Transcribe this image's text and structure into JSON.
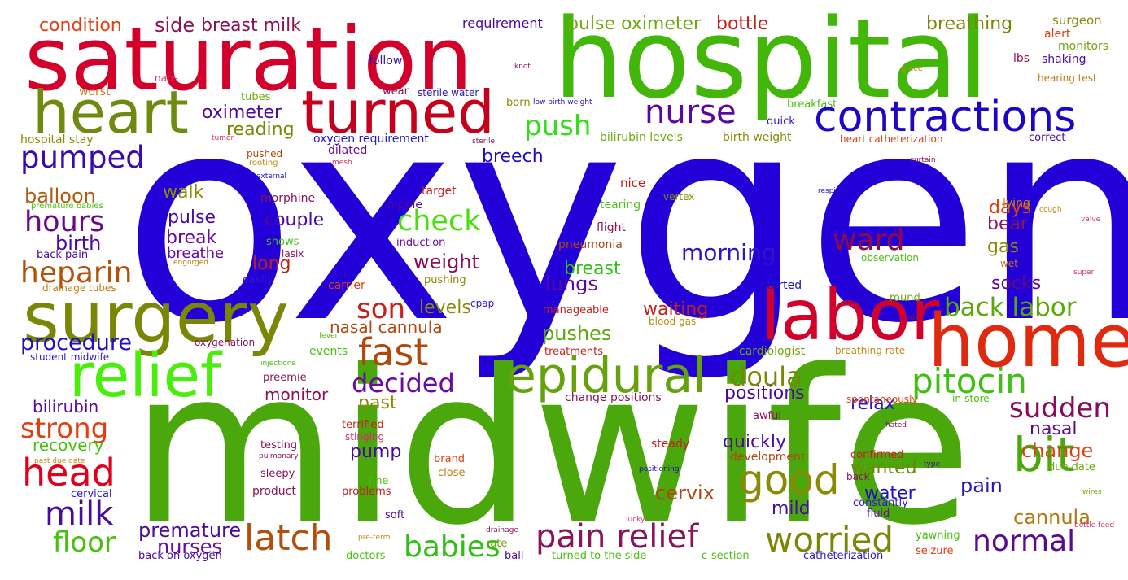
{
  "words": [
    {
      "t": "oxygen",
      "c": "#2300d8"
    },
    {
      "t": "midwife",
      "c": "#4aa80c"
    },
    {
      "t": "hospital",
      "c": "#42b70a"
    },
    {
      "t": "saturation",
      "c": "#d3002b"
    },
    {
      "t": "surgery",
      "c": "#7a8706"
    },
    {
      "t": "labor",
      "c": "#d3002b"
    },
    {
      "t": "home",
      "c": "#e02a10"
    },
    {
      "t": "heart",
      "c": "#6e8a10"
    },
    {
      "t": "turned",
      "c": "#c5001c"
    },
    {
      "t": "relief",
      "c": "#48ef0a"
    },
    {
      "t": "contractions",
      "c": "#1e06c8"
    },
    {
      "t": "epidural",
      "c": "#66a10e"
    },
    {
      "t": "head",
      "c": "#e0001e"
    },
    {
      "t": "bit",
      "c": "#4aa80c"
    },
    {
      "t": "good",
      "c": "#8a8a06"
    },
    {
      "t": "latch",
      "c": "#b34f0c"
    },
    {
      "t": "pain relief",
      "c": "#8a1458"
    },
    {
      "t": "worried",
      "c": "#7a8706"
    },
    {
      "t": "pitocin",
      "c": "#3dc010"
    },
    {
      "t": "fast",
      "c": "#b0480e"
    },
    {
      "t": "nurse",
      "c": "#5a08a0"
    },
    {
      "t": "push",
      "c": "#30e014"
    },
    {
      "t": "milk",
      "c": "#4a0a9a"
    },
    {
      "t": "pumped",
      "c": "#3a0ab0"
    },
    {
      "t": "hours",
      "c": "#6a0a8a"
    },
    {
      "t": "heparin",
      "c": "#b3500a"
    },
    {
      "t": "strong",
      "c": "#e04010"
    },
    {
      "t": "floor",
      "c": "#48c010"
    },
    {
      "t": "normal",
      "c": "#5a0a8a"
    },
    {
      "t": "babies",
      "c": "#30c014"
    },
    {
      "t": "back labor",
      "c": "#5aa80a"
    },
    {
      "t": "sudden",
      "c": "#8a0a5a"
    },
    {
      "t": "check",
      "c": "#48e00c"
    },
    {
      "t": "decided",
      "c": "#6a0aa0"
    },
    {
      "t": "son",
      "c": "#c5201c"
    },
    {
      "t": "ward",
      "c": "#900a48"
    },
    {
      "t": "doula",
      "c": "#7a8706"
    },
    {
      "t": "balloon",
      "c": "#b05c10"
    },
    {
      "t": "condition",
      "c": "#e04010"
    },
    {
      "t": "side",
      "c": "#8a1458"
    },
    {
      "t": "breast milk",
      "c": "#8a1458"
    },
    {
      "t": "pulse oximeter",
      "c": "#6ea80a"
    },
    {
      "t": "bottle",
      "c": "#c0201c"
    },
    {
      "t": "breathing",
      "c": "#7a8706"
    },
    {
      "t": "change",
      "c": "#e04010"
    },
    {
      "t": "morning",
      "c": "#2a18c8"
    },
    {
      "t": "procedure",
      "c": "#2010c0"
    },
    {
      "t": "premature",
      "c": "#4a0a9a"
    },
    {
      "t": "nurses",
      "c": "#6a0aa0"
    },
    {
      "t": "lungs",
      "c": "#5a0aa0"
    },
    {
      "t": "weight",
      "c": "#8a0a5a"
    },
    {
      "t": "pushes",
      "c": "#5aa80a"
    },
    {
      "t": "positions",
      "c": "#4a0aa0"
    },
    {
      "t": "cervix",
      "c": "#b0480e"
    },
    {
      "t": "wanted",
      "c": "#6a8a0a"
    },
    {
      "t": "water",
      "c": "#2010c0"
    },
    {
      "t": "pain",
      "c": "#2a18b0"
    },
    {
      "t": "cannula",
      "c": "#b07a10"
    },
    {
      "t": "birth",
      "c": "#4a0aa0"
    },
    {
      "t": "breast",
      "c": "#30c014"
    },
    {
      "t": "levels",
      "c": "#8a8a06"
    },
    {
      "t": "waiting",
      "c": "#c5201c"
    },
    {
      "t": "oximeter",
      "c": "#4a0aa0"
    },
    {
      "t": "reading",
      "c": "#7a8706"
    },
    {
      "t": "walk",
      "c": "#8a8a06"
    },
    {
      "t": "pulse",
      "c": "#4a0aa0"
    },
    {
      "t": "break",
      "c": "#6a0aa0"
    },
    {
      "t": "couple",
      "c": "#4a0aa0"
    },
    {
      "t": "long",
      "c": "#c0201c"
    },
    {
      "t": "breech",
      "c": "#2010c0"
    },
    {
      "t": "quickly",
      "c": "#4a0aa0"
    },
    {
      "t": "mild",
      "c": "#4a0aa0"
    },
    {
      "t": "relax",
      "c": "#2a18c8"
    },
    {
      "t": "socks",
      "c": "#5a0a8a"
    },
    {
      "t": "bear",
      "c": "#8a1458"
    },
    {
      "t": "days",
      "c": "#e04010"
    },
    {
      "t": "gas",
      "c": "#8a8a06"
    },
    {
      "t": "nasal",
      "c": "#5a0a8a"
    },
    {
      "t": "monitor",
      "c": "#8a1458"
    },
    {
      "t": "past",
      "c": "#8a8a06"
    },
    {
      "t": "recovery",
      "c": "#48c010"
    },
    {
      "t": "bilirubin",
      "c": "#5a0aa0"
    },
    {
      "t": "nasal cannula",
      "c": "#b0480e"
    },
    {
      "t": "pump",
      "c": "#4a0a9a"
    },
    {
      "t": "breathe",
      "c": "#6a0aa0"
    },
    {
      "t": "requirement",
      "c": "#4a0a9a"
    },
    {
      "t": "surgeon",
      "c": "#8a8a06"
    },
    {
      "t": "alert",
      "c": "#e04010"
    },
    {
      "t": "monitors",
      "c": "#6ea80a"
    },
    {
      "t": "shaking",
      "c": "#4a0aa0"
    },
    {
      "t": "lbs",
      "c": "#8a1458"
    },
    {
      "t": "hearing test",
      "c": "#c07a10"
    },
    {
      "t": "place",
      "c": "#c08a10"
    },
    {
      "t": "naps",
      "c": "#d3306a"
    },
    {
      "t": "follow",
      "c": "#2a18b0"
    },
    {
      "t": "knot",
      "c": "#8a1458"
    },
    {
      "t": "worst",
      "c": "#c07a10"
    },
    {
      "t": "wear",
      "c": "#8a1458"
    },
    {
      "t": "sterile water",
      "c": "#2a18b0"
    },
    {
      "t": "born",
      "c": "#8a8a06"
    },
    {
      "t": "low birth weight",
      "c": "#2010c0"
    },
    {
      "t": "tubes",
      "c": "#6ea80a"
    },
    {
      "t": "breakfast",
      "c": "#48c010"
    },
    {
      "t": "quick",
      "c": "#2a18c8"
    },
    {
      "t": "hospital stay",
      "c": "#8a8a06"
    },
    {
      "t": "tumor",
      "c": "#d3306a"
    },
    {
      "t": "pushed",
      "c": "#b0480e"
    },
    {
      "t": "rooting",
      "c": "#c08a10"
    },
    {
      "t": "oxygen requirement",
      "c": "#2a18c8"
    },
    {
      "t": "sterile",
      "c": "#8a1458"
    },
    {
      "t": "bilirubin levels",
      "c": "#6ea80a"
    },
    {
      "t": "birth weight",
      "c": "#8a8a06"
    },
    {
      "t": "heart catheterization",
      "c": "#e04010"
    },
    {
      "t": "correct",
      "c": "#4a0aa0"
    },
    {
      "t": "dilated",
      "c": "#6a0aa0"
    },
    {
      "t": "mesh",
      "c": "#d3306a"
    },
    {
      "t": "external",
      "c": "#2010c0"
    },
    {
      "t": "curtain",
      "c": "#8a1458"
    },
    {
      "t": "target",
      "c": "#c5201c"
    },
    {
      "t": "nice",
      "c": "#c0201c"
    },
    {
      "t": "respiratory",
      "c": "#2010c0"
    },
    {
      "t": "morphine",
      "c": "#8a1458"
    },
    {
      "t": "nipple",
      "c": "#4a0aa0"
    },
    {
      "t": "tearing",
      "c": "#48c010"
    },
    {
      "t": "vertex",
      "c": "#8a8a06"
    },
    {
      "t": "lying",
      "c": "#c08a10"
    },
    {
      "t": "premature babies",
      "c": "#48c010"
    },
    {
      "t": "cough",
      "c": "#c08a10"
    },
    {
      "t": "flight",
      "c": "#8a1458"
    },
    {
      "t": "valve",
      "c": "#d3306a"
    },
    {
      "t": "shows",
      "c": "#48c010"
    },
    {
      "t": "induction",
      "c": "#6a0aa0"
    },
    {
      "t": "back pain",
      "c": "#4a0a9a"
    },
    {
      "t": "lasix",
      "c": "#8a1458"
    },
    {
      "t": "pneumonia",
      "c": "#b0480e"
    },
    {
      "t": "engorged",
      "c": "#c07a10"
    },
    {
      "t": "observation",
      "c": "#48c010"
    },
    {
      "t": "wet",
      "c": "#c07a10"
    },
    {
      "t": "easily",
      "c": "#2a18c8"
    },
    {
      "t": "carrier",
      "c": "#e04010"
    },
    {
      "t": "pushing",
      "c": "#8a8a06"
    },
    {
      "t": "drainage tubes",
      "c": "#c07a10"
    },
    {
      "t": "started",
      "c": "#2010c0"
    },
    {
      "t": "super",
      "c": "#d3306a"
    },
    {
      "t": "cpap",
      "c": "#2a18c8"
    },
    {
      "t": "manageable",
      "c": "#c5201c"
    },
    {
      "t": "round",
      "c": "#6ea80a"
    },
    {
      "t": "pounds",
      "c": "#2010c0"
    },
    {
      "t": "blood gas",
      "c": "#c08a10"
    },
    {
      "t": "ended",
      "c": "#8a1458"
    },
    {
      "t": "fever",
      "c": "#48c010"
    },
    {
      "t": "oxygenation",
      "c": "#8a1458"
    },
    {
      "t": "events",
      "c": "#48c010"
    },
    {
      "t": "treatments",
      "c": "#c5201c"
    },
    {
      "t": "cardiologist",
      "c": "#6ea80a"
    },
    {
      "t": "breathing rate",
      "c": "#c08a10"
    },
    {
      "t": "student midwife",
      "c": "#2a18c8"
    },
    {
      "t": "injections",
      "c": "#48c010"
    },
    {
      "t": "preemie",
      "c": "#8a1458"
    },
    {
      "t": "change positions",
      "c": "#8a1458"
    },
    {
      "t": "spontaneously",
      "c": "#e04010"
    },
    {
      "t": "in-store",
      "c": "#48c010"
    },
    {
      "t": "terrified",
      "c": "#c5201c"
    },
    {
      "t": "awful",
      "c": "#8a1458"
    },
    {
      "t": "stinging",
      "c": "#d3306a"
    },
    {
      "t": "hated",
      "c": "#8a1458"
    },
    {
      "t": "testing",
      "c": "#8a1458"
    },
    {
      "t": "brand",
      "c": "#e04010"
    },
    {
      "t": "steady",
      "c": "#c5201c"
    },
    {
      "t": "confirmed",
      "c": "#c5201c"
    },
    {
      "t": "type",
      "c": "#4a0aa0"
    },
    {
      "t": "past due date",
      "c": "#c08a10"
    },
    {
      "t": "pulmonary",
      "c": "#8a1458"
    },
    {
      "t": "sleepy",
      "c": "#8a1458"
    },
    {
      "t": "close",
      "c": "#c07a10"
    },
    {
      "t": "development",
      "c": "#b0480e"
    },
    {
      "t": "constantly",
      "c": "#2a18c8"
    },
    {
      "t": "due date",
      "c": "#6ea80a"
    },
    {
      "t": "cervical",
      "c": "#2a18c8"
    },
    {
      "t": "product",
      "c": "#8a1458"
    },
    {
      "t": "fine",
      "c": "#48c010"
    },
    {
      "t": "problems",
      "c": "#c5201c"
    },
    {
      "t": "positioning",
      "c": "#2010c0"
    },
    {
      "t": "back",
      "c": "#8a1458"
    },
    {
      "t": "fluid",
      "c": "#6a0aa0"
    },
    {
      "t": "wires",
      "c": "#6ea80a"
    },
    {
      "t": "soft",
      "c": "#4a0aa0"
    },
    {
      "t": "lucky",
      "c": "#d3306a"
    },
    {
      "t": "pre-term",
      "c": "#c08a10"
    },
    {
      "t": "drainage",
      "c": "#8a1458"
    },
    {
      "t": "bottle feed",
      "c": "#d3306a"
    },
    {
      "t": "rate",
      "c": "#6ea80a"
    },
    {
      "t": "yawning",
      "c": "#48c010"
    },
    {
      "t": "back on oxygen",
      "c": "#4a0aa0"
    },
    {
      "t": "doctors",
      "c": "#48c010"
    },
    {
      "t": "ball",
      "c": "#4a0a9a"
    },
    {
      "t": "turned to the side",
      "c": "#48c010"
    },
    {
      "t": "c-section",
      "c": "#48c010"
    },
    {
      "t": "catheterization",
      "c": "#2a18c8"
    },
    {
      "t": "seizure",
      "c": "#e04010"
    }
  ]
}
